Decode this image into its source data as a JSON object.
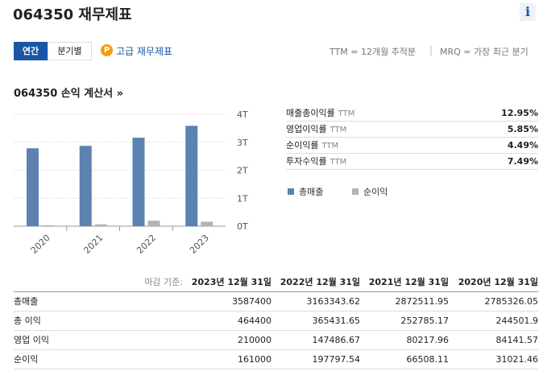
{
  "header": {
    "title": "064350 재무제표",
    "info": "i"
  },
  "tabs": {
    "items": [
      "연간",
      "분기별"
    ],
    "premium": "고급 재무제표",
    "premium_icon": "P",
    "note_ttm": "TTM = 12개월 추적분",
    "separator": "|",
    "note_mrq": "MRQ = 가장 최근 분기"
  },
  "section": {
    "title": "064350 손익 계산서 »"
  },
  "chart_data": {
    "type": "bar",
    "categories": [
      "2020",
      "2021",
      "2022",
      "2023"
    ],
    "series": [
      {
        "name": "총매출",
        "color": "#5b82b0",
        "values": [
          2.785,
          2.8725,
          3.163,
          3.587
        ]
      },
      {
        "name": "순이익",
        "color": "#b3b3b3",
        "values": [
          0.031,
          0.0665,
          0.198,
          0.161
        ]
      }
    ],
    "ylim": [
      0,
      4
    ],
    "yticks": [
      {
        "value": 0,
        "label": "0T"
      },
      {
        "value": 1,
        "label": "1T"
      },
      {
        "value": 2,
        "label": "2T"
      },
      {
        "value": 3,
        "label": "3T"
      },
      {
        "value": 4,
        "label": "4T"
      }
    ],
    "grid": true
  },
  "ratios": [
    {
      "label": "매출총이익률",
      "basis": "TTM",
      "value": "12.95%"
    },
    {
      "label": "영업이익률",
      "basis": "TTM",
      "value": "5.85%"
    },
    {
      "label": "순이익률",
      "basis": "TTM",
      "value": "4.49%"
    },
    {
      "label": "투자수익률",
      "basis": "TTM",
      "value": "7.49%"
    }
  ],
  "table": {
    "header": [
      "마감 기준:",
      "2023년 12월 31일",
      "2022년 12월 31일",
      "2021년 12월 31일",
      "2020년 12월 31일"
    ],
    "rows": [
      [
        "총매출",
        3587400,
        3163343.62,
        2872511.95,
        2785326.05
      ],
      [
        "총 이익",
        464400,
        365431.65,
        252785.17,
        244501.9
      ],
      [
        "영업 이익",
        210000,
        147486.67,
        80217.96,
        84141.57
      ],
      [
        "순이익",
        161000,
        197797.54,
        66508.11,
        31021.46
      ]
    ]
  }
}
